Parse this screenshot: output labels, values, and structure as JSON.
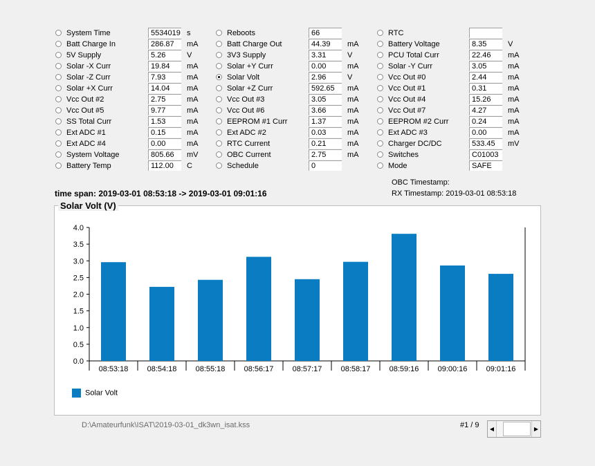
{
  "columns": [
    {
      "rows": [
        {
          "label": "System Time",
          "value": "5534019",
          "unit": "s",
          "selected": false
        },
        {
          "label": "Batt Charge In",
          "value": "286.87",
          "unit": "mA",
          "selected": false
        },
        {
          "label": "5V Supply",
          "value": "5.26",
          "unit": "V",
          "selected": false
        },
        {
          "label": "Solar -X Curr",
          "value": "19.84",
          "unit": "mA",
          "selected": false
        },
        {
          "label": "Solar -Z Curr",
          "value": "7.93",
          "unit": "mA",
          "selected": false
        },
        {
          "label": "Solar +X Curr",
          "value": "14.04",
          "unit": "mA",
          "selected": false
        },
        {
          "label": "Vcc Out #2",
          "value": "2.75",
          "unit": "mA",
          "selected": false
        },
        {
          "label": "Vcc Out #5",
          "value": "9.77",
          "unit": "mA",
          "selected": false
        },
        {
          "label": "SS Total Curr",
          "value": "1.53",
          "unit": "mA",
          "selected": false
        },
        {
          "label": "Ext ADC #1",
          "value": "0.15",
          "unit": "mA",
          "selected": false
        },
        {
          "label": "Ext ADC #4",
          "value": "0.00",
          "unit": "mA",
          "selected": false
        },
        {
          "label": "System Voltage",
          "value": "805.66",
          "unit": "mV",
          "selected": false
        },
        {
          "label": "Battery Temp",
          "value": "112.00",
          "unit": "C",
          "selected": false
        }
      ]
    },
    {
      "rows": [
        {
          "label": "Reboots",
          "value": "66",
          "unit": "",
          "selected": false
        },
        {
          "label": "Batt Charge Out",
          "value": "44.39",
          "unit": "mA",
          "selected": false
        },
        {
          "label": "3V3 Supply",
          "value": "3.31",
          "unit": "V",
          "selected": false
        },
        {
          "label": "Solar +Y Curr",
          "value": "0.00",
          "unit": "mA",
          "selected": false
        },
        {
          "label": "Solar Volt",
          "value": "2.96",
          "unit": "V",
          "selected": true
        },
        {
          "label": "Solar +Z Curr",
          "value": "592.65",
          "unit": "mA",
          "selected": false
        },
        {
          "label": "Vcc Out #3",
          "value": "3.05",
          "unit": "mA",
          "selected": false
        },
        {
          "label": "Vcc Out #6",
          "value": "3.66",
          "unit": "mA",
          "selected": false
        },
        {
          "label": "EEPROM #1 Curr",
          "value": "1.37",
          "unit": "mA",
          "selected": false
        },
        {
          "label": "Ext ADC #2",
          "value": "0.03",
          "unit": "mA",
          "selected": false
        },
        {
          "label": "RTC Current",
          "value": "0.21",
          "unit": "mA",
          "selected": false
        },
        {
          "label": "OBC Current",
          "value": "2.75",
          "unit": "mA",
          "selected": false
        },
        {
          "label": "Schedule",
          "value": "0",
          "unit": "",
          "selected": false
        }
      ]
    },
    {
      "rows": [
        {
          "label": "RTC",
          "value": "",
          "unit": "",
          "selected": false
        },
        {
          "label": "Battery Voltage",
          "value": "8.35",
          "unit": "V",
          "selected": false
        },
        {
          "label": "PCU Total Curr",
          "value": "22.46",
          "unit": "mA",
          "selected": false
        },
        {
          "label": "Solar -Y Curr",
          "value": "3.05",
          "unit": "mA",
          "selected": false
        },
        {
          "label": "Vcc Out #0",
          "value": "2.44",
          "unit": "mA",
          "selected": false
        },
        {
          "label": "Vcc Out #1",
          "value": "0.31",
          "unit": "mA",
          "selected": false
        },
        {
          "label": "Vcc Out #4",
          "value": "15.26",
          "unit": "mA",
          "selected": false
        },
        {
          "label": "Vcc Out #7",
          "value": "4.27",
          "unit": "mA",
          "selected": false
        },
        {
          "label": "EEPROM #2 Curr",
          "value": "0.24",
          "unit": "mA",
          "selected": false
        },
        {
          "label": "Ext ADC #3",
          "value": "0.00",
          "unit": "mA",
          "selected": false
        },
        {
          "label": "Charger DC/DC",
          "value": "533.45",
          "unit": "mV",
          "selected": false
        },
        {
          "label": "Switches",
          "value": "C01003",
          "unit": "",
          "selected": false
        },
        {
          "label": "Mode",
          "value": "SAFE",
          "unit": "",
          "selected": false
        }
      ]
    }
  ],
  "timespan": "time span: 2019-03-01 08:53:18 -> 2019-03-01 09:01:16",
  "obc_timestamp": "OBC Timestamp:",
  "rx_timestamp": "RX Timestamp: 2019-03-01 08:53:18",
  "chart_data": {
    "type": "bar",
    "title": "Solar Volt (V)",
    "categories": [
      "08:53:18",
      "08:54:18",
      "08:55:18",
      "08:56:17",
      "08:57:17",
      "08:58:17",
      "08:59:16",
      "09:00:16",
      "09:01:16"
    ],
    "series": [
      {
        "name": "Solar Volt",
        "values": [
          2.96,
          2.22,
          2.43,
          3.12,
          2.45,
          2.97,
          3.81,
          2.86,
          2.61
        ],
        "color": "#0a7cc2"
      }
    ],
    "ylim": [
      0,
      4.0
    ],
    "yticks": [
      "0.0",
      "0.5",
      "1.0",
      "1.5",
      "2.0",
      "2.5",
      "3.0",
      "3.5",
      "4.0"
    ],
    "grid": false,
    "legend_position": "bottom-left"
  },
  "file_path": "D:\\Amateurfunk\\ISAT\\2019-03-01_dk3wn_isat.kss",
  "page_indicator": "#1 / 9",
  "scrollbar": {
    "left_arrow": "◀",
    "right_arrow": "▶"
  }
}
